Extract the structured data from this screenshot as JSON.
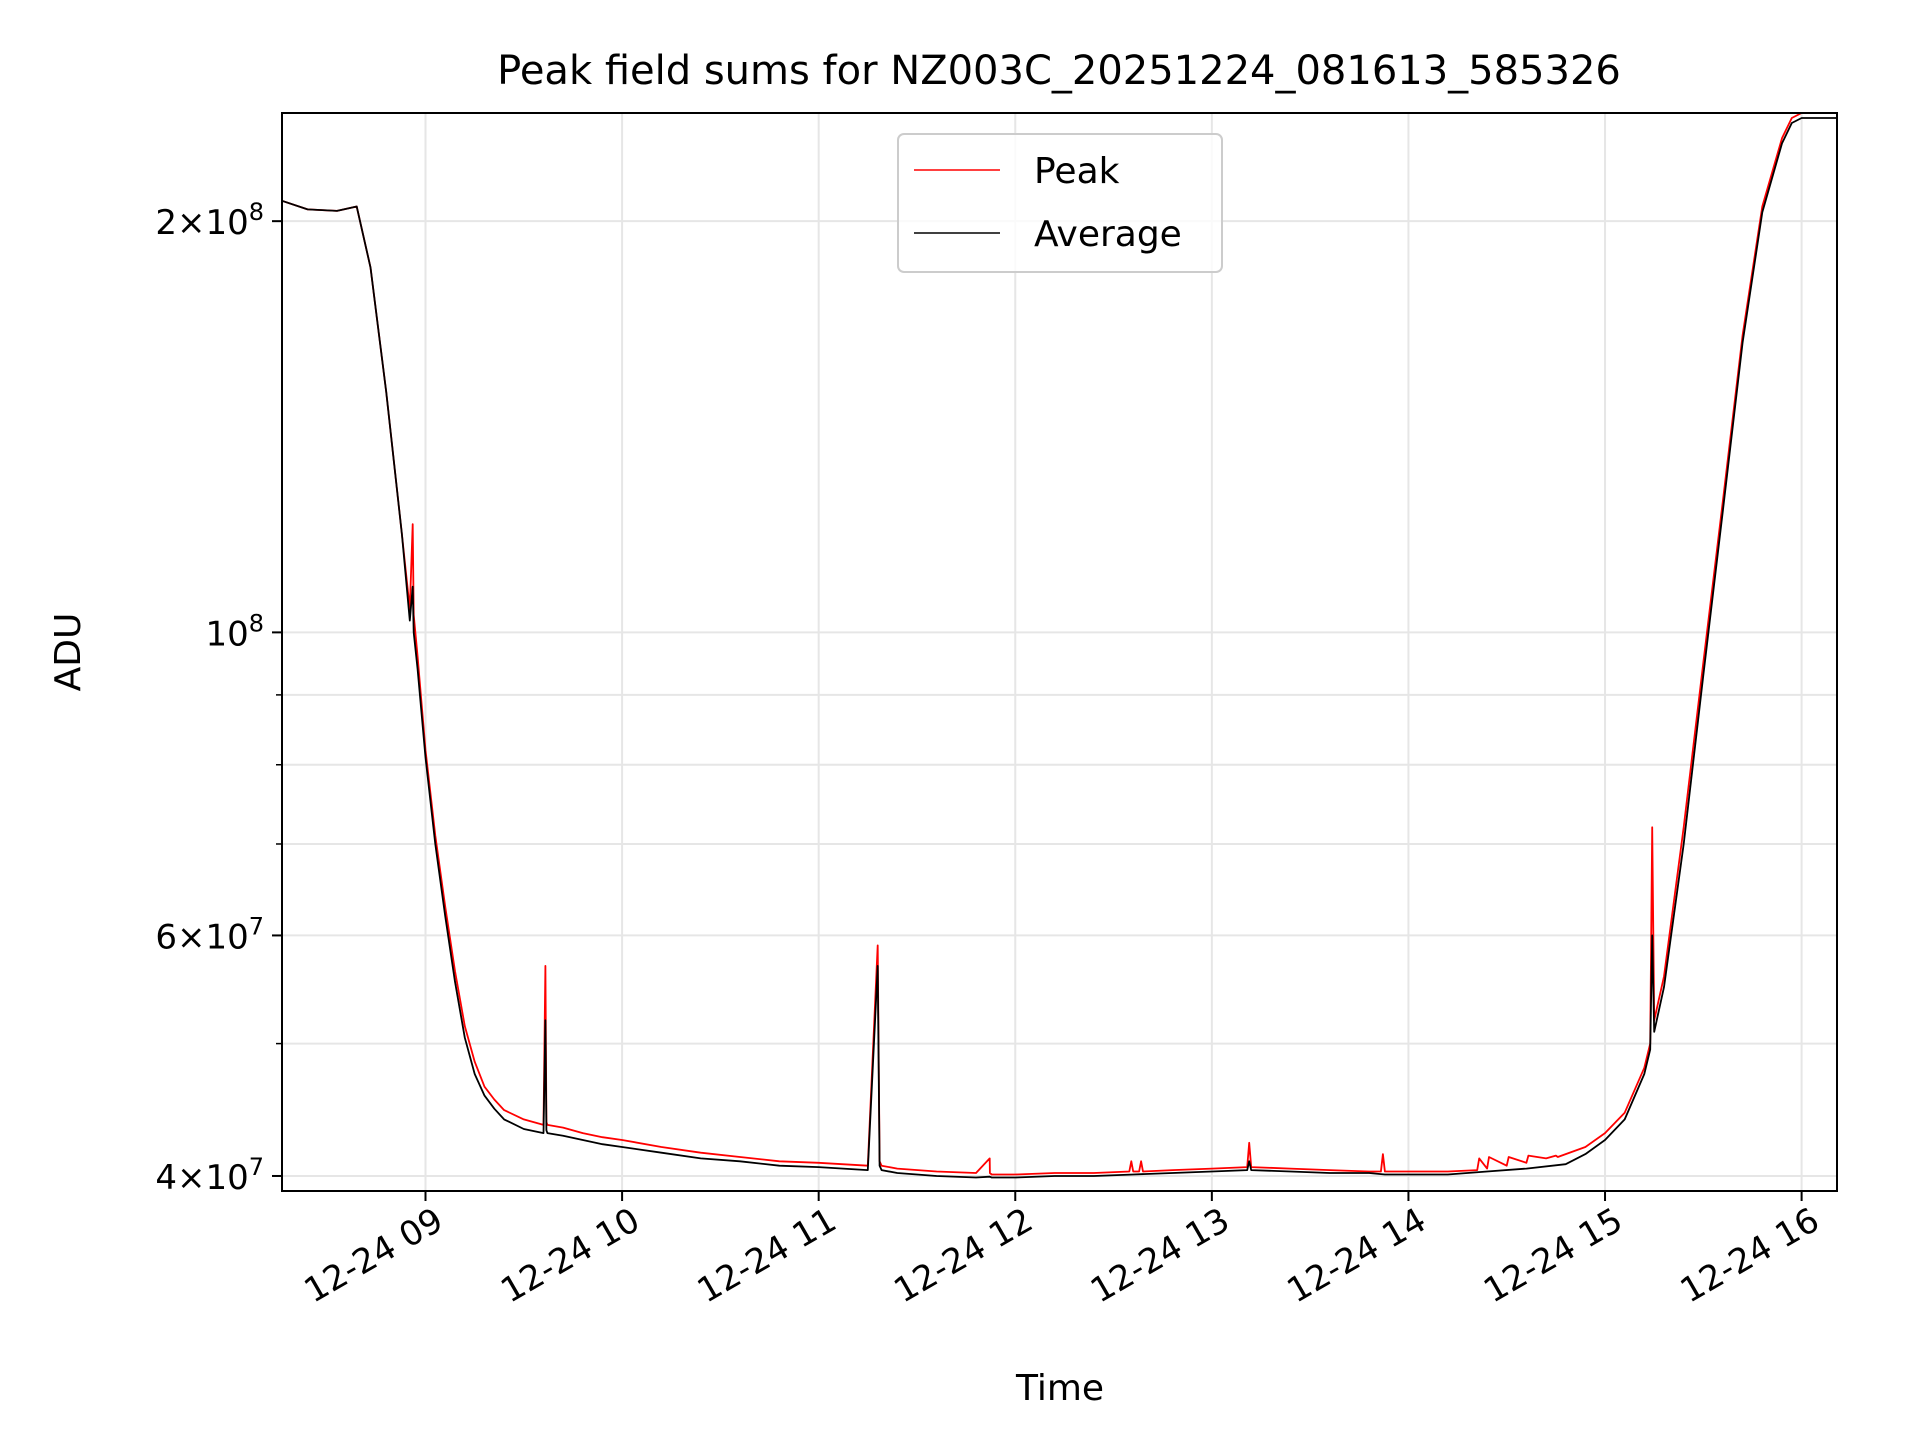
{
  "chart_data": {
    "type": "line",
    "title": "Peak field sums for NZ003C_20251224_081613_585326",
    "xlabel": "Time",
    "ylabel": "ADU",
    "y_scale": "log",
    "ylim": [
      39000000,
      240000000
    ],
    "xlim": [
      8.27,
      16.18
    ],
    "x_unit": "hour of day (2025-12-24)",
    "grid": true,
    "legend_position": "upper-center",
    "x_ticks": [
      {
        "value": 9,
        "label": "12-24 09"
      },
      {
        "value": 10,
        "label": "12-24 10"
      },
      {
        "value": 11,
        "label": "12-24 11"
      },
      {
        "value": 12,
        "label": "12-24 12"
      },
      {
        "value": 13,
        "label": "12-24 13"
      },
      {
        "value": 14,
        "label": "12-24 14"
      },
      {
        "value": 15,
        "label": "12-24 15"
      },
      {
        "value": 16,
        "label": "12-24 16"
      }
    ],
    "y_ticks_major": [
      {
        "value": 40000000,
        "mant": "4",
        "exp": "7"
      },
      {
        "value": 60000000,
        "mant": "6",
        "exp": "7"
      },
      {
        "value": 100000000,
        "mant": "",
        "exp": "8"
      },
      {
        "value": 200000000,
        "mant": "2",
        "exp": "8"
      }
    ],
    "y_ticks_minor": [
      50000000,
      70000000,
      80000000,
      90000000
    ],
    "series": [
      {
        "name": "Peak",
        "color": "#ff0000",
        "x": [
          8.27,
          8.4,
          8.55,
          8.65,
          8.72,
          8.8,
          8.88,
          8.92,
          8.935,
          8.94,
          8.96,
          9.0,
          9.05,
          9.1,
          9.15,
          9.2,
          9.25,
          9.3,
          9.35,
          9.4,
          9.5,
          9.6,
          9.61,
          9.615,
          9.62,
          9.7,
          9.8,
          9.9,
          10.0,
          10.2,
          10.4,
          10.6,
          10.8,
          11.0,
          11.25,
          11.3,
          11.31,
          11.32,
          11.4,
          11.6,
          11.8,
          11.87,
          11.871,
          11.88,
          12.0,
          12.2,
          12.4,
          12.58,
          12.59,
          12.6,
          12.63,
          12.64,
          12.65,
          12.8,
          13.0,
          13.18,
          13.19,
          13.2,
          13.4,
          13.6,
          13.8,
          13.86,
          13.87,
          13.88,
          14.0,
          14.2,
          14.35,
          14.36,
          14.4,
          14.41,
          14.5,
          14.51,
          14.6,
          14.61,
          14.7,
          14.75,
          14.76,
          14.8,
          14.9,
          15.0,
          15.1,
          15.2,
          15.23,
          15.24,
          15.25,
          15.3,
          15.4,
          15.5,
          15.6,
          15.7,
          15.8,
          15.9,
          15.95,
          16.0,
          16.18
        ],
        "y": [
          207000000,
          204000000,
          203500000,
          205000000,
          185000000,
          150000000,
          118000000,
          104000000,
          120000000,
          103000000,
          96000000,
          82000000,
          71000000,
          63000000,
          56500000,
          51500000,
          48500000,
          46500000,
          45500000,
          44700000,
          44000000,
          43600000,
          57000000,
          43800000,
          43600000,
          43400000,
          43000000,
          42700000,
          42500000,
          42000000,
          41600000,
          41300000,
          41000000,
          40900000,
          40700000,
          59000000,
          41000000,
          40700000,
          40500000,
          40300000,
          40200000,
          41200000,
          40200000,
          40100000,
          40100000,
          40200000,
          40200000,
          40300000,
          41000000,
          40300000,
          40300000,
          41000000,
          40300000,
          40400000,
          40500000,
          40600000,
          42300000,
          40600000,
          40500000,
          40400000,
          40300000,
          40300000,
          41500000,
          40300000,
          40300000,
          40300000,
          40400000,
          41200000,
          40500000,
          41300000,
          40700000,
          41300000,
          40900000,
          41400000,
          41200000,
          41400000,
          41300000,
          41500000,
          42000000,
          43000000,
          44500000,
          48000000,
          50000000,
          72000000,
          52000000,
          56000000,
          72000000,
          95000000,
          125000000,
          165000000,
          205000000,
          230000000,
          238000000,
          240000000,
          240000000
        ]
      },
      {
        "name": "Average",
        "color": "#000000",
        "x": [
          8.27,
          8.4,
          8.55,
          8.65,
          8.72,
          8.8,
          8.88,
          8.92,
          8.935,
          8.94,
          8.96,
          9.0,
          9.05,
          9.1,
          9.15,
          9.2,
          9.25,
          9.3,
          9.35,
          9.4,
          9.5,
          9.6,
          9.61,
          9.615,
          9.62,
          9.7,
          9.8,
          9.9,
          10.0,
          10.2,
          10.4,
          10.6,
          10.8,
          11.0,
          11.25,
          11.3,
          11.31,
          11.32,
          11.4,
          11.6,
          11.8,
          11.87,
          11.88,
          12.0,
          12.2,
          12.4,
          12.6,
          12.8,
          13.0,
          13.18,
          13.19,
          13.2,
          13.4,
          13.6,
          13.8,
          13.88,
          14.0,
          14.2,
          14.4,
          14.6,
          14.8,
          14.9,
          15.0,
          15.1,
          15.2,
          15.23,
          15.24,
          15.25,
          15.3,
          15.4,
          15.5,
          15.6,
          15.7,
          15.8,
          15.9,
          15.95,
          16.0,
          16.18
        ],
        "y": [
          207000000,
          204000000,
          203500000,
          205000000,
          185000000,
          150000000,
          118000000,
          102000000,
          108000000,
          100000000,
          94000000,
          81000000,
          70000000,
          62000000,
          55500000,
          50500000,
          47500000,
          45800000,
          44800000,
          44000000,
          43300000,
          43000000,
          52000000,
          43200000,
          43000000,
          42800000,
          42500000,
          42200000,
          42000000,
          41600000,
          41200000,
          41000000,
          40700000,
          40600000,
          40400000,
          57000000,
          40700000,
          40400000,
          40200000,
          40000000,
          39900000,
          39950000,
          39900000,
          39900000,
          40000000,
          40000000,
          40100000,
          40200000,
          40300000,
          40400000,
          41000000,
          40400000,
          40300000,
          40200000,
          40200000,
          40100000,
          40100000,
          40100000,
          40300000,
          40500000,
          40800000,
          41500000,
          42500000,
          44000000,
          47500000,
          49500000,
          60000000,
          51000000,
          55000000,
          70000000,
          93000000,
          123000000,
          163000000,
          203000000,
          228000000,
          236000000,
          238000000,
          238000000
        ]
      }
    ]
  }
}
